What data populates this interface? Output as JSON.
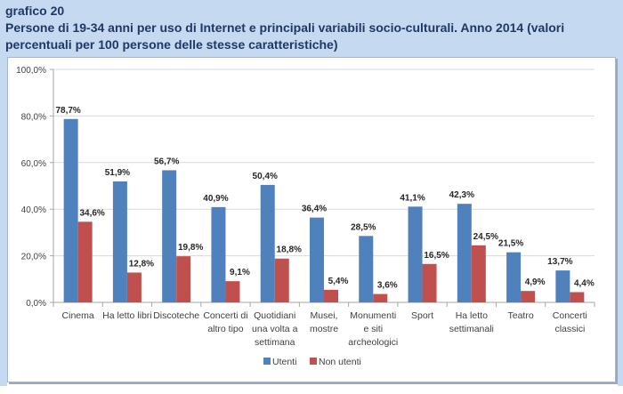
{
  "header": {
    "label": "grafico 20",
    "title": "Persone di 19-34 anni per uso di Internet e principali variabili socio-culturali. Anno 2014 (valori percentuali per 100 persone delle stesse caratteristiche)"
  },
  "colors": {
    "utenti": "#4f81bd",
    "non_utenti": "#c0504d",
    "grid": "#d9d9d9",
    "header_bg": "#c5d9f1",
    "title_text": "#1f3864"
  },
  "chart_data": {
    "type": "bar",
    "title": "Persone di 19-34 anni per uso di Internet e principali variabili socio-culturali. Anno 2014 (valori percentuali per 100 persone delle stesse caratteristiche)",
    "xlabel": "",
    "ylabel": "",
    "ylim": [
      0,
      100
    ],
    "yticks": [
      0,
      20,
      40,
      60,
      80,
      100
    ],
    "ytick_labels": [
      "0,0%",
      "20,0%",
      "40,0%",
      "60,0%",
      "80,0%",
      "100,0%"
    ],
    "grid": true,
    "legend_position": "bottom",
    "categories": [
      [
        "Cinema"
      ],
      [
        "Ha letto libri"
      ],
      [
        "Discoteche"
      ],
      [
        "Concerti di",
        "altro tipo"
      ],
      [
        "Quotidiani",
        "una volta a",
        "settimana"
      ],
      [
        "Musei,",
        "mostre"
      ],
      [
        "Monumenti",
        "e siti",
        "archeologici"
      ],
      [
        "Sport"
      ],
      [
        "Ha letto",
        "settimanali"
      ],
      [
        "Teatro"
      ],
      [
        "Concerti",
        "classici"
      ]
    ],
    "series": [
      {
        "name": "Utenti",
        "values": [
          78.7,
          51.9,
          56.7,
          40.9,
          50.4,
          36.4,
          28.5,
          41.1,
          42.3,
          21.5,
          13.7
        ],
        "labels": [
          "78,7%",
          "51,9%",
          "56,7%",
          "40,9%",
          "50,4%",
          "36,4%",
          "28,5%",
          "41,1%",
          "42,3%",
          "21,5%",
          "13,7%"
        ]
      },
      {
        "name": "Non utenti",
        "values": [
          34.6,
          12.8,
          19.8,
          9.1,
          18.8,
          5.4,
          3.6,
          16.5,
          24.5,
          4.9,
          4.4
        ],
        "labels": [
          "34,6%",
          "12,8%",
          "19,8%",
          "9,1%",
          "18,8%",
          "5,4%",
          "3,6%",
          "16,5%",
          "24,5%",
          "4,9%",
          "4,4%"
        ]
      }
    ]
  }
}
